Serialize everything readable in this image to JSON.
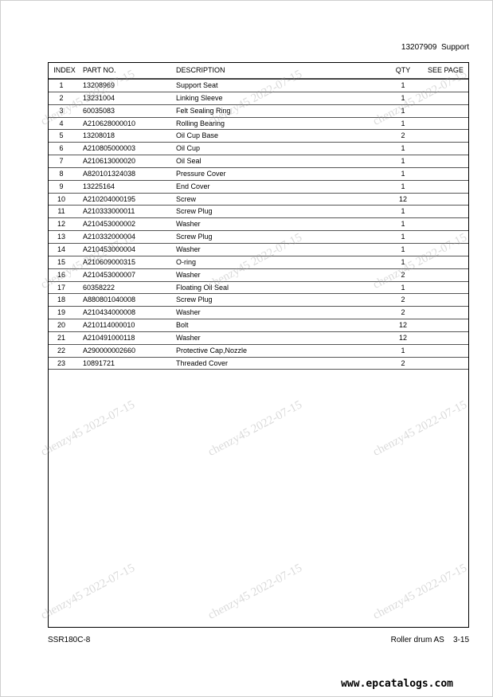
{
  "header": {
    "doc_no": "13207909",
    "title": "Support"
  },
  "columns": [
    "INDEX",
    "PART NO.",
    "DESCRIPTION",
    "QTY",
    "SEE PAGE"
  ],
  "rows": [
    [
      "1",
      "13208969",
      "Support Seat",
      "1"
    ],
    [
      "2",
      "13231004",
      "Linking Sleeve",
      "1"
    ],
    [
      "3",
      "60035083",
      "Felt Sealing Ring",
      "1"
    ],
    [
      "4",
      "A210628000010",
      "Rolling Bearing",
      "1"
    ],
    [
      "5",
      "13208018",
      "Oil Cup Base",
      "2"
    ],
    [
      "6",
      "A210805000003",
      "Oil Cup",
      "1"
    ],
    [
      "7",
      "A210613000020",
      "Oil Seal",
      "1"
    ],
    [
      "8",
      "A820101324038",
      "Pressure Cover",
      "1"
    ],
    [
      "9",
      "13225164",
      "End Cover",
      "1"
    ],
    [
      "10",
      "A210204000195",
      "Screw",
      "12"
    ],
    [
      "11",
      "A210333000011",
      "Screw Plug",
      "1"
    ],
    [
      "12",
      "A210453000002",
      "Washer",
      "1"
    ],
    [
      "13",
      "A210332000004",
      "Screw Plug",
      "1"
    ],
    [
      "14",
      "A210453000004",
      "Washer",
      "1"
    ],
    [
      "15",
      "A210609000315",
      "O-ring",
      "1"
    ],
    [
      "16",
      "A210453000007",
      "Washer",
      "2"
    ],
    [
      "17",
      "60358222",
      "Floating Oil Seal",
      "1"
    ],
    [
      "18",
      "A880801040008",
      "Screw Plug",
      "2"
    ],
    [
      "19",
      "A210434000008",
      "Washer",
      "2"
    ],
    [
      "20",
      "A210114000010",
      "Bolt",
      "12"
    ],
    [
      "21",
      "A210491000118",
      "Washer",
      "12"
    ],
    [
      "22",
      "A290000002660",
      "Protective Cap,Nozzle",
      "1"
    ],
    [
      "23",
      "10891721",
      "Threaded Cover",
      "2"
    ]
  ],
  "footer": {
    "model": "SSR180C-8",
    "section": "Roller drum AS",
    "page": "3-15"
  },
  "watermark": "chenzy45 2022-07-15",
  "site": "www.epcatalogs.com"
}
